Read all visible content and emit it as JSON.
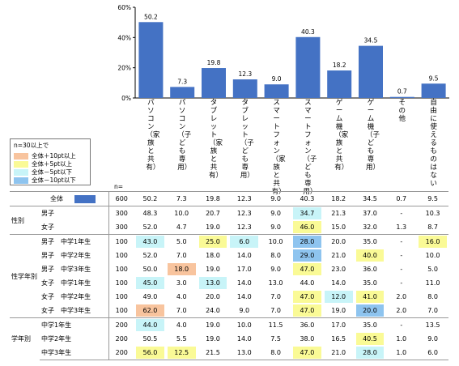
{
  "chart_data": {
    "type": "bar",
    "categories": [
      "パソコン（家族と共有）",
      "パソコン（子ども専用）",
      "タブレット（家族と共有）",
      "タブレット（子ども専用）",
      "スマートフォン（家族と共有）",
      "スマートフォン（子ども専用）",
      "ゲーム機（家族と共有）",
      "ゲーム機（子ども専用）",
      "その他",
      "自由に使えるものはない"
    ],
    "category_labels": [
      "パソコン（家族と共有）",
      "パソコン（子ども専用）",
      "タブレット（家族と共有）",
      "タブレット（子ども専用）",
      "スマートフォン（家族と共有）",
      "スマートフォン（子ども専用）",
      "ゲーム機（家族と共有）",
      "ゲーム機（子ども専用）",
      "その他",
      "自由に使えるものはない"
    ],
    "values": [
      50.2,
      7.3,
      19.8,
      12.3,
      9.0,
      40.3,
      18.2,
      34.5,
      0.7,
      9.5
    ],
    "value_labels": [
      "50.2",
      "7.3",
      "19.8",
      "12.3",
      "9.0",
      "40.3",
      "18.2",
      "34.5",
      "0.7",
      "9.5"
    ],
    "ylim": [
      0,
      60
    ],
    "yticks": [
      "0%",
      "20%",
      "40%",
      "60%"
    ],
    "ytick_values": [
      0,
      20,
      40,
      60
    ],
    "bar_color": "#4472c4",
    "grid": false
  },
  "legend": {
    "title": "n=30以上で",
    "items": [
      {
        "label": "全体＋10pt以上",
        "color": "#f8c49e"
      },
      {
        "label": "全体＋5pt以上",
        "color": "#fafa96"
      },
      {
        "label": "全体－5pt以下",
        "color": "#c8f4f8"
      },
      {
        "label": "全体－10pt以下",
        "color": "#8ec4ef"
      }
    ]
  },
  "n_label": "n=",
  "table": {
    "rows": [
      {
        "group": "",
        "sub": "全体",
        "n": "600",
        "values": [
          "50.2",
          "7.3",
          "19.8",
          "12.3",
          "9.0",
          "40.3",
          "18.2",
          "34.5",
          "0.7",
          "9.5"
        ],
        "hl": [
          "",
          "",
          "",
          "",
          "",
          "",
          "",
          "",
          "",
          ""
        ],
        "total": true,
        "gstart": true
      },
      {
        "group": "性別",
        "span": 2,
        "sub": "男子",
        "n": "300",
        "values": [
          "48.3",
          "10.0",
          "20.7",
          "12.3",
          "9.0",
          "34.7",
          "21.3",
          "37.0",
          "-",
          "10.3"
        ],
        "hl": [
          "",
          "",
          "",
          "",
          "",
          "lo5",
          "",
          "",
          "",
          ""
        ],
        "gstart": true
      },
      {
        "sub": "女子",
        "n": "300",
        "values": [
          "52.0",
          "4.7",
          "19.0",
          "12.3",
          "9.0",
          "46.0",
          "15.0",
          "32.0",
          "1.3",
          "8.7"
        ],
        "hl": [
          "",
          "",
          "",
          "",
          "",
          "hi5",
          "",
          "",
          "",
          ""
        ]
      },
      {
        "group": "性学年別",
        "span": 6,
        "sub": "男子　中学1年生",
        "n": "100",
        "values": [
          "43.0",
          "5.0",
          "25.0",
          "6.0",
          "10.0",
          "28.0",
          "20.0",
          "35.0",
          "-",
          "16.0"
        ],
        "hl": [
          "lo5",
          "",
          "hi5",
          "lo5",
          "",
          "lo10",
          "",
          "",
          "",
          "hi5"
        ],
        "gstart": true
      },
      {
        "sub": "男子　中学2年生",
        "n": "100",
        "values": [
          "52.0",
          "7.0",
          "18.0",
          "14.0",
          "8.0",
          "29.0",
          "21.0",
          "40.0",
          "-",
          "10.0"
        ],
        "hl": [
          "",
          "",
          "",
          "",
          "",
          "lo10",
          "",
          "hi5",
          "",
          ""
        ]
      },
      {
        "sub": "男子　中学3年生",
        "n": "100",
        "values": [
          "50.0",
          "18.0",
          "19.0",
          "17.0",
          "9.0",
          "47.0",
          "23.0",
          "36.0",
          "-",
          "5.0"
        ],
        "hl": [
          "",
          "hi10",
          "",
          "",
          "",
          "hi5",
          "",
          "",
          "",
          ""
        ]
      },
      {
        "sub": "女子　中学1年生",
        "n": "100",
        "values": [
          "45.0",
          "3.0",
          "13.0",
          "14.0",
          "13.0",
          "44.0",
          "14.0",
          "35.0",
          "-",
          "11.0"
        ],
        "hl": [
          "lo5",
          "",
          "lo5",
          "",
          "",
          "",
          "",
          "",
          "",
          ""
        ]
      },
      {
        "sub": "女子　中学2年生",
        "n": "100",
        "values": [
          "49.0",
          "4.0",
          "20.0",
          "14.0",
          "7.0",
          "47.0",
          "12.0",
          "41.0",
          "2.0",
          "8.0"
        ],
        "hl": [
          "",
          "",
          "",
          "",
          "",
          "hi5",
          "lo5",
          "hi5",
          "",
          ""
        ]
      },
      {
        "sub": "女子　中学3年生",
        "n": "100",
        "values": [
          "62.0",
          "7.0",
          "24.0",
          "9.0",
          "7.0",
          "47.0",
          "19.0",
          "20.0",
          "2.0",
          "7.0"
        ],
        "hl": [
          "hi10",
          "",
          "",
          "",
          "",
          "hi5",
          "",
          "lo10",
          "",
          ""
        ]
      },
      {
        "group": "学年別",
        "span": 3,
        "sub": "中学1年生",
        "n": "200",
        "values": [
          "44.0",
          "4.0",
          "19.0",
          "10.0",
          "11.5",
          "36.0",
          "17.0",
          "35.0",
          "-",
          "13.5"
        ],
        "hl": [
          "lo5",
          "",
          "",
          "",
          "",
          "",
          "",
          "",
          "",
          ""
        ],
        "gstart": true
      },
      {
        "sub": "中学2年生",
        "n": "200",
        "values": [
          "50.5",
          "5.5",
          "19.0",
          "14.0",
          "7.5",
          "38.0",
          "16.5",
          "40.5",
          "1.0",
          "9.0"
        ],
        "hl": [
          "",
          "",
          "",
          "",
          "",
          "",
          "",
          "hi5",
          "",
          ""
        ]
      },
      {
        "sub": "中学3年生",
        "n": "200",
        "values": [
          "56.0",
          "12.5",
          "21.5",
          "13.0",
          "8.0",
          "47.0",
          "21.0",
          "28.0",
          "1.0",
          "6.0"
        ],
        "hl": [
          "hi5",
          "hi5",
          "",
          "",
          "",
          "hi5",
          "",
          "lo5",
          "",
          ""
        ],
        "last": true
      }
    ]
  }
}
